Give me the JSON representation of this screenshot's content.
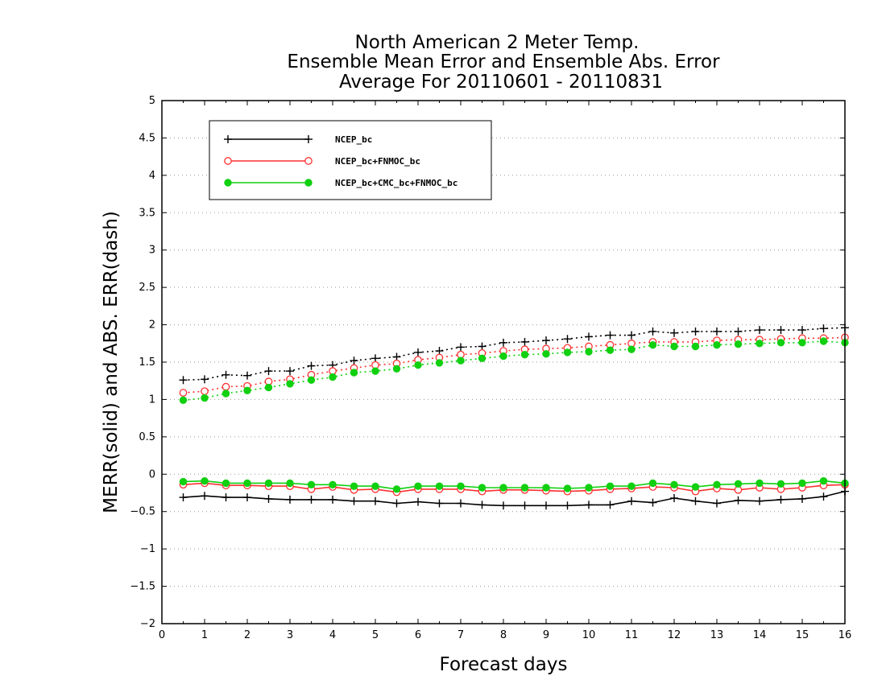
{
  "chart_data": {
    "type": "line",
    "title": [
      "North American 2 Meter Temp.",
      "Ensemble Mean Error and Ensemble Abs. Error",
      "Average For 20110601 - 20110831"
    ],
    "xlabel": "Forecast days",
    "ylabel": "MERR(solid) and ABS. ERR(dash)",
    "xlim": [
      0,
      16
    ],
    "ylim": [
      -2,
      5
    ],
    "xticks": [
      "0",
      "1",
      "2",
      "3",
      "4",
      "5",
      "6",
      "7",
      "8",
      "9",
      "10",
      "11",
      "12",
      "13",
      "14",
      "15",
      "16"
    ],
    "yticks": [
      "−2",
      "−1.5",
      "−1",
      "−0.5",
      "0",
      "0.5",
      "1",
      "1.5",
      "2",
      "2.5",
      "3",
      "3.5",
      "4",
      "4.5",
      "5"
    ],
    "grid": true,
    "legend_position": "top-left",
    "x": [
      0.5,
      1,
      1.5,
      2,
      2.5,
      3,
      3.5,
      4,
      4.5,
      5,
      5.5,
      6,
      6.5,
      7,
      7.5,
      8,
      8.5,
      9,
      9.5,
      10,
      10.5,
      11,
      11.5,
      12,
      12.5,
      13,
      13.5,
      14,
      14.5,
      15,
      15.5,
      16
    ],
    "series": [
      {
        "name": "NCEP_bc",
        "color": "#000000",
        "marker": "plus",
        "mean_error": [
          -0.31,
          -0.29,
          -0.31,
          -0.31,
          -0.33,
          -0.34,
          -0.34,
          -0.34,
          -0.36,
          -0.36,
          -0.39,
          -0.37,
          -0.39,
          -0.39,
          -0.41,
          -0.42,
          -0.42,
          -0.42,
          -0.42,
          -0.41,
          -0.41,
          -0.36,
          -0.38,
          -0.32,
          -0.36,
          -0.39,
          -0.35,
          -0.36,
          -0.34,
          -0.33,
          -0.3,
          -0.23
        ],
        "abs_error": [
          1.26,
          1.27,
          1.33,
          1.32,
          1.38,
          1.38,
          1.45,
          1.46,
          1.52,
          1.55,
          1.57,
          1.63,
          1.65,
          1.7,
          1.71,
          1.76,
          1.77,
          1.79,
          1.81,
          1.84,
          1.86,
          1.86,
          1.91,
          1.89,
          1.91,
          1.91,
          1.91,
          1.93,
          1.93,
          1.93,
          1.95,
          1.96
        ]
      },
      {
        "name": "NCEP_bc+FNMOC_bc",
        "color": "#ff3030",
        "marker": "open-circle",
        "mean_error": [
          -0.14,
          -0.12,
          -0.15,
          -0.15,
          -0.16,
          -0.16,
          -0.2,
          -0.17,
          -0.21,
          -0.2,
          -0.24,
          -0.2,
          -0.2,
          -0.2,
          -0.23,
          -0.21,
          -0.21,
          -0.22,
          -0.23,
          -0.22,
          -0.2,
          -0.19,
          -0.17,
          -0.18,
          -0.23,
          -0.19,
          -0.21,
          -0.18,
          -0.2,
          -0.18,
          -0.15,
          -0.14
        ],
        "abs_error": [
          1.09,
          1.11,
          1.17,
          1.18,
          1.24,
          1.27,
          1.33,
          1.38,
          1.42,
          1.46,
          1.48,
          1.53,
          1.56,
          1.6,
          1.62,
          1.65,
          1.67,
          1.68,
          1.69,
          1.71,
          1.73,
          1.75,
          1.77,
          1.77,
          1.77,
          1.79,
          1.8,
          1.8,
          1.81,
          1.82,
          1.82,
          1.83
        ]
      },
      {
        "name": "NCEP_bc+CMC_bc+FNMOC_bc",
        "color": "#10d010",
        "marker": "filled-circle",
        "mean_error": [
          -0.1,
          -0.09,
          -0.12,
          -0.12,
          -0.12,
          -0.12,
          -0.14,
          -0.14,
          -0.16,
          -0.16,
          -0.2,
          -0.16,
          -0.16,
          -0.16,
          -0.18,
          -0.18,
          -0.18,
          -0.18,
          -0.19,
          -0.18,
          -0.16,
          -0.16,
          -0.12,
          -0.14,
          -0.17,
          -0.14,
          -0.13,
          -0.12,
          -0.13,
          -0.12,
          -0.09,
          -0.12
        ],
        "abs_error": [
          0.99,
          1.02,
          1.08,
          1.12,
          1.16,
          1.21,
          1.26,
          1.3,
          1.36,
          1.38,
          1.41,
          1.46,
          1.49,
          1.52,
          1.55,
          1.58,
          1.6,
          1.61,
          1.63,
          1.64,
          1.66,
          1.67,
          1.73,
          1.71,
          1.71,
          1.73,
          1.74,
          1.75,
          1.76,
          1.76,
          1.78,
          1.76
        ]
      }
    ]
  }
}
